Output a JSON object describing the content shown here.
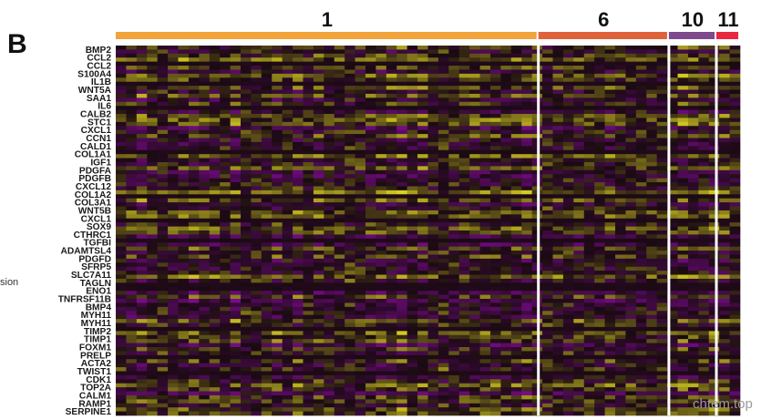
{
  "chart_data": {
    "type": "heatmap",
    "panel_label": "B",
    "clusters": [
      {
        "label": "1",
        "color": "#F2A33A",
        "start": 0.0,
        "end": 0.677
      },
      {
        "label": "6",
        "color": "#E0623A",
        "start": 0.677,
        "end": 0.886
      },
      {
        "label": "10",
        "color": "#7E4A8C",
        "start": 0.886,
        "end": 0.962
      },
      {
        "label": "11",
        "color": "#E8283E",
        "start": 0.962,
        "end": 1.0
      }
    ],
    "genes": [
      "BMP2",
      "CCL2",
      "CCL2",
      "S100A4",
      "IL1B",
      "WNT5A",
      "SAA1",
      "IL6",
      "CALB2",
      "STC1",
      "CXCL1",
      "CCN1",
      "CALD1",
      "COL1A1",
      "IGF1",
      "PDGFA",
      "PDGFB",
      "CXCL12",
      "COL1A2",
      "COL3A1",
      "WNT5B",
      "CXCL1",
      "SOX9",
      "CTHRC1",
      "TGFBI",
      "ADAMTSL4",
      "PDGFD",
      "SFRP5",
      "SLC7A11",
      "TAGLN",
      "ENO1",
      "TNFRSF11B",
      "BMP4",
      "MYH11",
      "MYH11",
      "TIMP2",
      "TIMP1",
      "FOXM1",
      "PRELP",
      "ACTA2",
      "TWIST1",
      "CDK1",
      "TOP2A",
      "CALM1",
      "RAMP1",
      "SERPINE1"
    ],
    "color_scale": {
      "low": "#7A0A8C",
      "mid": "#1A0A12",
      "high": "#D8D020"
    },
    "side_label": "sion",
    "watermark": "chtem.top"
  }
}
